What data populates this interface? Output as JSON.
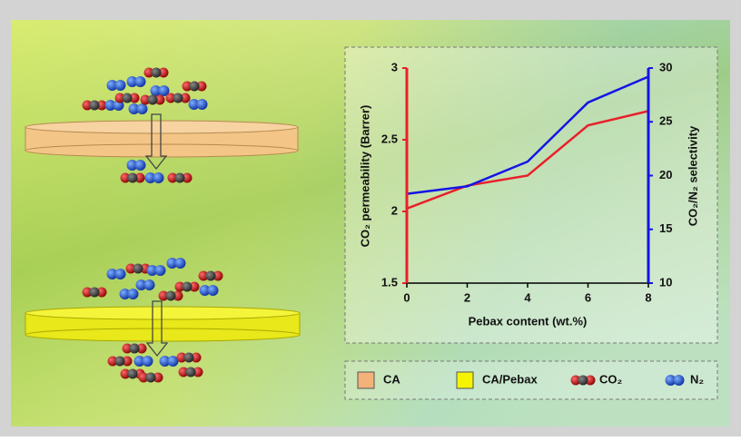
{
  "chart_data": {
    "type": "line",
    "x_label": "Pebax content (wt.%)",
    "y_label": "CO₂ permeability (Barrer)",
    "y2_label": "CO₂/N₂ selectivity",
    "x": [
      0,
      2,
      4,
      6,
      8
    ],
    "xlim": [
      0,
      8
    ],
    "xticks": [
      0,
      2,
      4,
      6,
      8
    ],
    "ylim": [
      1.5,
      3
    ],
    "yticks": [
      1.5,
      2,
      2.5,
      3
    ],
    "y2lim": [
      10,
      30
    ],
    "y2ticks": [
      10,
      15,
      20,
      25,
      30
    ],
    "series": [
      {
        "color": "#e8202a",
        "values": [
          2.02,
          2.18,
          2.25,
          2.6,
          2.7
        ]
      },
      {
        "color": "#1414e6",
        "axis": "y2",
        "values": [
          18.3,
          19,
          21.3,
          26.8,
          29.2
        ]
      }
    ],
    "legend": {
      "items": [
        {
          "label": "CA"
        },
        {
          "label": "CA/Pebax"
        },
        {
          "label": "CO₂"
        },
        {
          "label": "N₂"
        }
      ]
    }
  }
}
